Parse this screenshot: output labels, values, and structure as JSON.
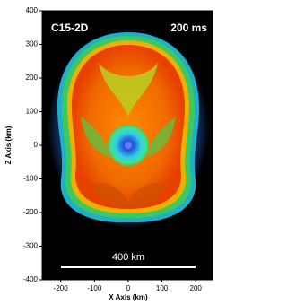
{
  "chart_data": {
    "type": "image",
    "annotations": [
      "C15-2D",
      "200 ms",
      "400 km"
    ],
    "xlabel": "X Axis (km)",
    "ylabel": "Z Axis (km)",
    "xlim": [
      -255,
      250
    ],
    "ylim": [
      -400,
      400
    ],
    "xticks": [
      -200,
      -100,
      0,
      100,
      200
    ],
    "yticks": [
      -400,
      -300,
      -200,
      -100,
      0,
      100,
      200,
      300,
      400
    ]
  }
}
